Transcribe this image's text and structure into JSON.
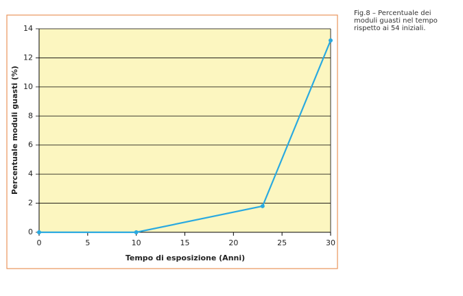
{
  "chart_data": {
    "type": "line",
    "caption": "Fig.8 – Percentuale dei moduli guasti nel tempo rispetto ai 54 iniziali.",
    "xlabel": "Tempo di esposizione (Anni)",
    "ylabel": "Percentuale moduli guasti (%)",
    "x": [
      0,
      10,
      23,
      30
    ],
    "series": [
      {
        "color": "#29a9e0",
        "values": [
          0,
          0,
          1.8,
          13.2
        ]
      }
    ],
    "xlim": [
      0,
      30
    ],
    "xticks": [
      0,
      5,
      10,
      15,
      20,
      25,
      30
    ],
    "ylim": [
      0,
      14
    ],
    "yticks": [
      0,
      2,
      4,
      6,
      8,
      10,
      12,
      14
    ],
    "grid": true
  }
}
